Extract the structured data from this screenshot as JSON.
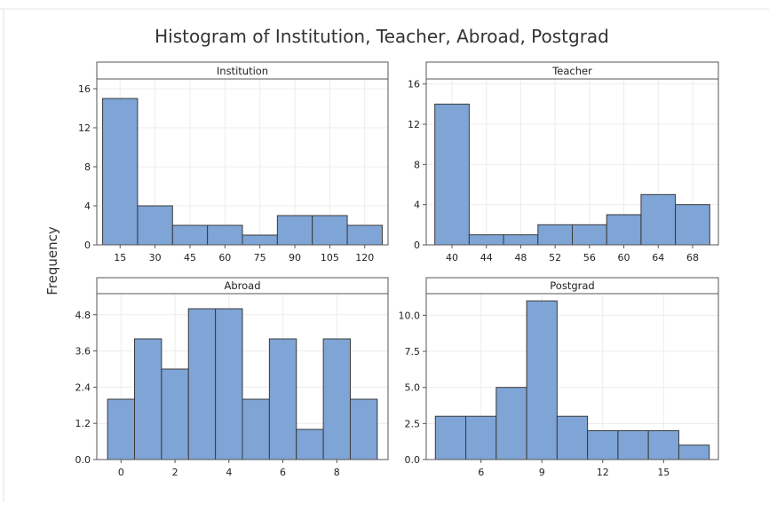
{
  "title": "Histogram of Institution, Teacher, Abroad, Postgrad",
  "ylabel": "Frequency",
  "chart_data": [
    {
      "type": "bar",
      "panel": "Institution",
      "bin_width": 15,
      "bin_start": 7.5,
      "counts": [
        15,
        4,
        2,
        2,
        1,
        3,
        3,
        2
      ],
      "xlim": [
        5,
        130
      ],
      "ylim": [
        0,
        17
      ],
      "xticks": [
        15,
        30,
        45,
        60,
        75,
        90,
        105,
        120
      ],
      "yticks": [
        0,
        4,
        8,
        12,
        16
      ],
      "ytick_labels": [
        "0",
        "4",
        "8",
        "12",
        "16"
      ],
      "grid": true
    },
    {
      "type": "bar",
      "panel": "Teacher",
      "bin_width": 4,
      "bin_start": 38,
      "counts": [
        14,
        1,
        1,
        2,
        2,
        3,
        5,
        4
      ],
      "xlim": [
        37,
        71
      ],
      "ylim": [
        0,
        16.5
      ],
      "xticks": [
        40,
        44,
        48,
        52,
        56,
        60,
        64,
        68
      ],
      "yticks": [
        0,
        4,
        8,
        12,
        16
      ],
      "ytick_labels": [
        "0",
        "4",
        "8",
        "12",
        "16"
      ],
      "grid": true
    },
    {
      "type": "bar",
      "panel": "Abroad",
      "bin_width": 1,
      "bin_start": -0.5,
      "counts": [
        2,
        4,
        3,
        5,
        5,
        2,
        4,
        1,
        4,
        2
      ],
      "xlim": [
        -0.9,
        9.9
      ],
      "ylim": [
        0,
        5.5
      ],
      "xticks": [
        0,
        2,
        4,
        6,
        8
      ],
      "yticks": [
        0,
        1.2,
        2.4,
        3.6,
        4.8
      ],
      "ytick_labels": [
        "0.0",
        "1.2",
        "2.4",
        "3.6",
        "4.8"
      ],
      "grid": true
    },
    {
      "type": "bar",
      "panel": "Postgrad",
      "bin_width": 1.5,
      "bin_start": 3.75,
      "counts": [
        3,
        3,
        5,
        11,
        3,
        2,
        2,
        2,
        1
      ],
      "xlim": [
        3.3,
        17.7
      ],
      "ylim": [
        0,
        11.5
      ],
      "xticks": [
        6,
        9,
        12,
        15
      ],
      "yticks": [
        0,
        2.5,
        5,
        7.5,
        10
      ],
      "ytick_labels": [
        "0.0",
        "2.5",
        "5.0",
        "7.5",
        "10.0"
      ],
      "grid": true
    }
  ]
}
